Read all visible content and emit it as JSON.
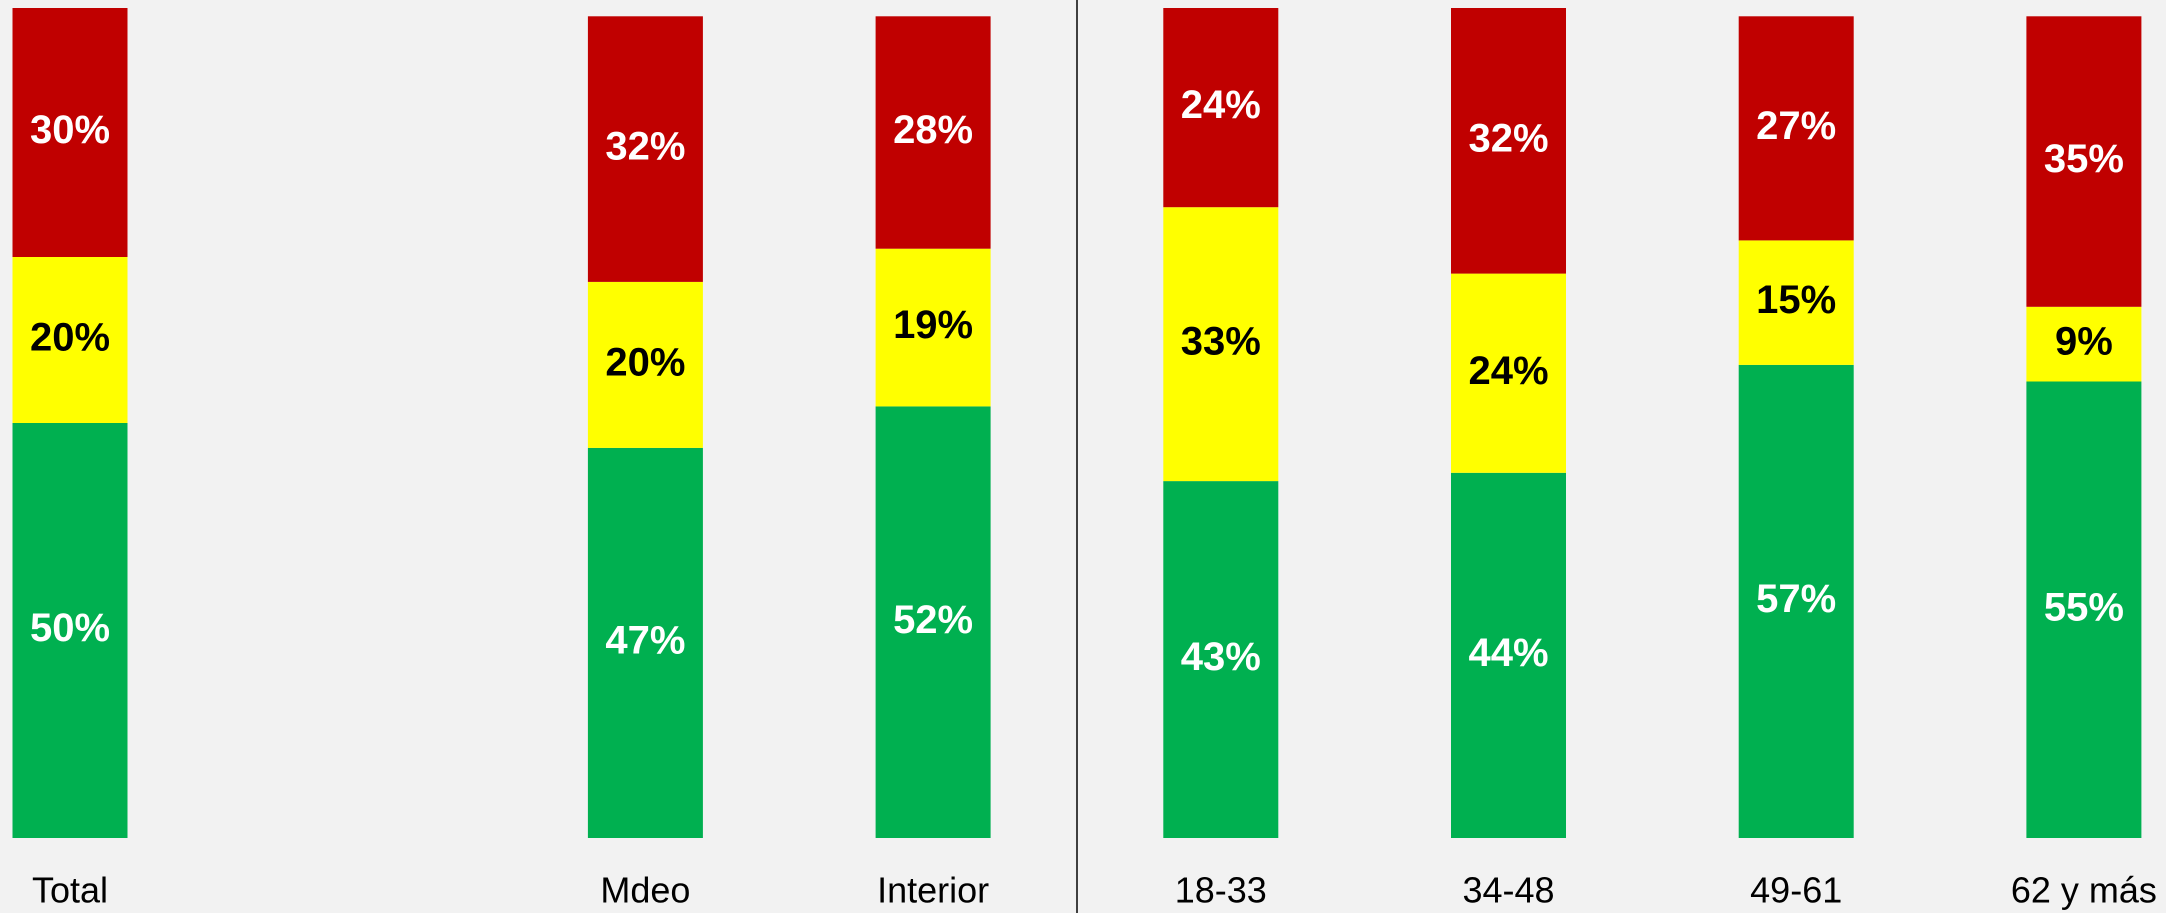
{
  "chart_data": {
    "type": "stacked_bar",
    "categories": [
      "Total",
      null,
      "Mdeo",
      "Interior",
      "18-33",
      "34-48",
      "49-61",
      "62 y más"
    ],
    "series": [
      {
        "color": "#00b050",
        "label_color": "#ffffff",
        "values": [
          50,
          null,
          47,
          52,
          43,
          44,
          57,
          55
        ],
        "value_labels": [
          "50%",
          null,
          "47%",
          "52%",
          "43%",
          "44%",
          "57%",
          "55%"
        ]
      },
      {
        "color": "#ffff00",
        "label_color": "#000000",
        "values": [
          20,
          null,
          20,
          19,
          33,
          24,
          15,
          9
        ],
        "value_labels": [
          "20%",
          null,
          "20%",
          "19%",
          "33%",
          "24%",
          "15%",
          "9%"
        ]
      },
      {
        "color": "#c00000",
        "label_color": "#ffffff",
        "values": [
          30,
          null,
          32,
          28,
          24,
          32,
          27,
          35
        ],
        "value_labels": [
          "30%",
          null,
          "32%",
          "28%",
          "24%",
          "32%",
          "27%",
          "35%"
        ]
      }
    ],
    "ylim": [
      0,
      100
    ],
    "grid": false
  }
}
